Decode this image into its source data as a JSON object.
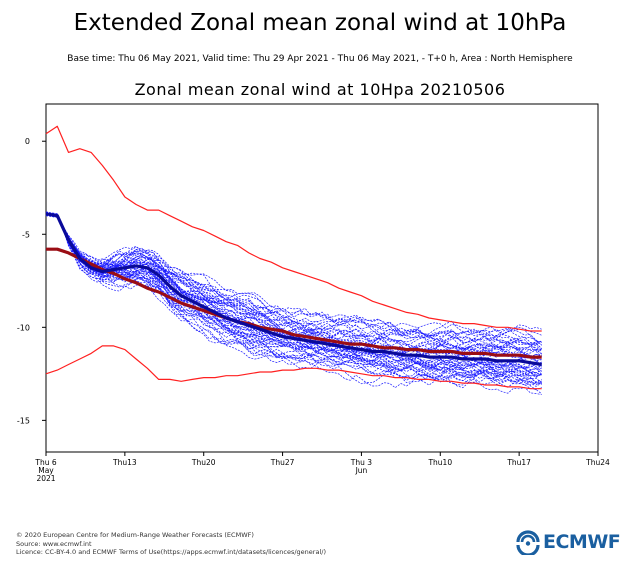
{
  "header": {
    "title": "Extended Zonal mean zonal wind at 10hPa",
    "subtitle": "Base time: Thu 06 May 2021, Valid time: Thu 29 Apr 2021 - Thu 06 May 2021, - T+0 h, Area : North Hemisphere"
  },
  "chart_data": {
    "type": "line",
    "title": "Zonal mean zonal wind at 10Hpa 20210506",
    "xlabel": "",
    "ylabel": "",
    "x_unit": "days from Thu 6 May 2021",
    "xlim": [
      0,
      49
    ],
    "ylim": [
      -16.7,
      2.0
    ],
    "yticks": [
      0,
      -5,
      -10,
      -15
    ],
    "xticks": [
      {
        "x": 0,
        "label": "Thu 6",
        "label2": "May",
        "label3": "2021"
      },
      {
        "x": 7,
        "label": "Thu13"
      },
      {
        "x": 14,
        "label": "Thu20"
      },
      {
        "x": 21,
        "label": "Thu27"
      },
      {
        "x": 28,
        "label": "Thu 3",
        "label2": "Jun"
      },
      {
        "x": 35,
        "label": "Thu10"
      },
      {
        "x": 42,
        "label": "Thu17"
      },
      {
        "x": 49,
        "label": "Thu24"
      }
    ],
    "grid": false,
    "colors": {
      "envelope": "#ff2020",
      "climatology": "#9a0d14",
      "ensemble_mean": "#0a0a9a",
      "members": "#1a1aff"
    },
    "series": [
      {
        "kind": "upper-extreme",
        "x": [
          0,
          1,
          2,
          3,
          4,
          5,
          6,
          7,
          8,
          9,
          10,
          11,
          12,
          13,
          14,
          15,
          16,
          17,
          18,
          19,
          20,
          21,
          22,
          23,
          24,
          25,
          26,
          27,
          28,
          29,
          30,
          31,
          32,
          33,
          34,
          35,
          36,
          37,
          38,
          39,
          40,
          41,
          42,
          43,
          44
        ],
        "values": [
          0.4,
          0.8,
          -0.6,
          -0.4,
          -0.6,
          -1.3,
          -2.1,
          -3.0,
          -3.4,
          -3.7,
          -3.7,
          -4.0,
          -4.3,
          -4.6,
          -4.8,
          -5.1,
          -5.4,
          -5.6,
          -6.0,
          -6.3,
          -6.5,
          -6.8,
          -7.0,
          -7.2,
          -7.4,
          -7.6,
          -7.9,
          -8.1,
          -8.3,
          -8.6,
          -8.8,
          -9.0,
          -9.2,
          -9.3,
          -9.5,
          -9.6,
          -9.7,
          -9.8,
          -9.8,
          -9.9,
          -10.0,
          -10.0,
          -10.1,
          -10.2,
          -10.2
        ]
      },
      {
        "kind": "lower-extreme",
        "x": [
          0,
          1,
          2,
          3,
          4,
          5,
          6,
          7,
          8,
          9,
          10,
          11,
          12,
          13,
          14,
          15,
          16,
          17,
          18,
          19,
          20,
          21,
          22,
          23,
          24,
          25,
          26,
          27,
          28,
          29,
          30,
          31,
          32,
          33,
          34,
          35,
          36,
          37,
          38,
          39,
          40,
          41,
          42,
          43,
          44
        ],
        "values": [
          -12.5,
          -12.3,
          -12.0,
          -11.7,
          -11.4,
          -11.0,
          -11.0,
          -11.2,
          -11.7,
          -12.2,
          -12.8,
          -12.8,
          -12.9,
          -12.8,
          -12.7,
          -12.7,
          -12.6,
          -12.6,
          -12.5,
          -12.4,
          -12.4,
          -12.3,
          -12.3,
          -12.2,
          -12.2,
          -12.3,
          -12.3,
          -12.4,
          -12.5,
          -12.6,
          -12.6,
          -12.7,
          -12.7,
          -12.8,
          -12.8,
          -12.9,
          -12.9,
          -13.0,
          -13.0,
          -13.1,
          -13.1,
          -13.2,
          -13.2,
          -13.3,
          -13.3
        ]
      },
      {
        "kind": "climatology",
        "x": [
          0,
          1,
          2,
          3,
          4,
          5,
          6,
          7,
          8,
          9,
          10,
          11,
          12,
          13,
          14,
          15,
          16,
          17,
          18,
          19,
          20,
          21,
          22,
          23,
          24,
          25,
          26,
          27,
          28,
          29,
          30,
          31,
          32,
          33,
          34,
          35,
          36,
          37,
          38,
          39,
          40,
          41,
          42,
          43,
          44
        ],
        "values": [
          -5.8,
          -5.8,
          -6.0,
          -6.3,
          -6.6,
          -6.9,
          -7.1,
          -7.4,
          -7.6,
          -7.9,
          -8.1,
          -8.4,
          -8.7,
          -8.9,
          -9.1,
          -9.3,
          -9.5,
          -9.7,
          -9.8,
          -10.0,
          -10.1,
          -10.2,
          -10.4,
          -10.5,
          -10.6,
          -10.7,
          -10.8,
          -10.9,
          -10.9,
          -11.0,
          -11.1,
          -11.1,
          -11.2,
          -11.2,
          -11.3,
          -11.3,
          -11.3,
          -11.4,
          -11.4,
          -11.4,
          -11.5,
          -11.5,
          -11.5,
          -11.6,
          -11.6
        ]
      },
      {
        "kind": "ensemble-mean",
        "x": [
          0,
          1,
          2,
          3,
          4,
          5,
          6,
          7,
          8,
          9,
          10,
          11,
          12,
          13,
          14,
          15,
          16,
          17,
          18,
          19,
          20,
          21,
          22,
          23,
          24,
          25,
          26,
          27,
          28,
          29,
          30,
          31,
          32,
          33,
          34,
          35,
          36,
          37,
          38,
          39,
          40,
          41,
          42,
          43,
          44
        ],
        "values": [
          -3.9,
          -4.0,
          -5.3,
          -6.3,
          -6.8,
          -7.0,
          -6.9,
          -6.8,
          -6.7,
          -6.8,
          -7.2,
          -7.8,
          -8.3,
          -8.6,
          -8.9,
          -9.2,
          -9.5,
          -9.7,
          -9.9,
          -10.1,
          -10.3,
          -10.5,
          -10.6,
          -10.7,
          -10.8,
          -10.9,
          -11.0,
          -11.1,
          -11.2,
          -11.3,
          -11.3,
          -11.4,
          -11.5,
          -11.5,
          -11.6,
          -11.6,
          -11.6,
          -11.7,
          -11.7,
          -11.7,
          -11.8,
          -11.8,
          -11.8,
          -11.9,
          -12.0
        ]
      }
    ],
    "members_summary": {
      "count": 51,
      "x_start": 0,
      "x_end": 44,
      "spread_end": [
        -10.4,
        -14.9
      ]
    }
  },
  "footer": {
    "line1": "© 2020 European Centre for Medium-Range Weather Forecasts (ECMWF)",
    "line2": "Source: www.ecmwf.int",
    "line3": "Licence: CC-BY-4.0 and ECMWF Terms of Use(https://apps.ecmwf.int/datasets/licences/general/)"
  },
  "logo": {
    "text": "ECMWF"
  }
}
